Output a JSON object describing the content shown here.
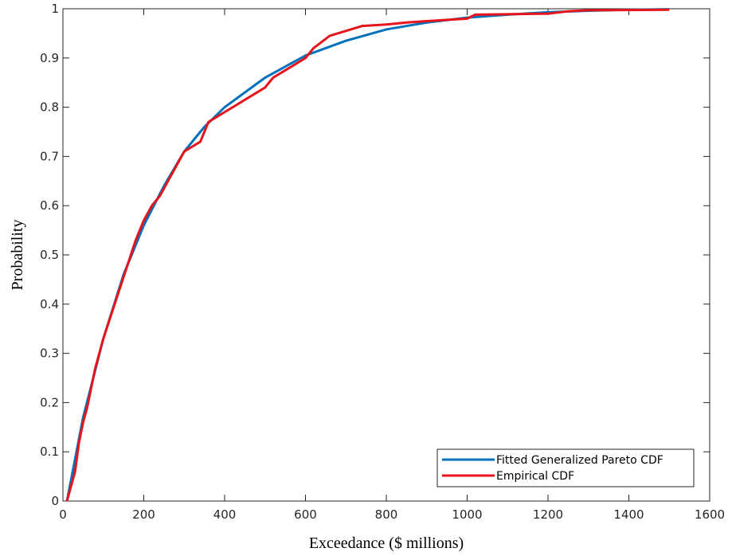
{
  "chart_data": {
    "type": "line",
    "xlabel": "Exceedance ($ millions)",
    "ylabel": "Probability",
    "xlim": [
      0,
      1600
    ],
    "xticks": [
      0,
      200,
      400,
      600,
      800,
      1000,
      1200,
      1400,
      1600
    ],
    "ylim": [
      0,
      1
    ],
    "yticks": [
      0,
      0.1,
      0.2,
      0.3,
      0.4,
      0.5,
      0.6,
      0.7,
      0.8,
      0.9,
      1
    ],
    "legend": "lower right",
    "series": [
      {
        "name": "Fitted Generalized Pareto CDF",
        "color": "#0072bd",
        "x": [
          10,
          50,
          100,
          150,
          200,
          250,
          300,
          350,
          400,
          500,
          600,
          700,
          800,
          900,
          1000,
          1100,
          1200,
          1300,
          1400,
          1500
        ],
        "values": [
          0,
          0.17,
          0.33,
          0.46,
          0.56,
          0.64,
          0.71,
          0.76,
          0.8,
          0.86,
          0.905,
          0.935,
          0.958,
          0.972,
          0.982,
          0.988,
          0.993,
          0.996,
          0.998,
          0.999
        ]
      },
      {
        "name": "Empirical CDF",
        "color": "#e8141c",
        "x": [
          10,
          20,
          30,
          40,
          50,
          60,
          70,
          80,
          90,
          100,
          120,
          140,
          160,
          180,
          200,
          220,
          240,
          260,
          280,
          300,
          340,
          360,
          400,
          420,
          440,
          480,
          500,
          520,
          560,
          600,
          620,
          660,
          700,
          740,
          800,
          850,
          900,
          1000,
          1020,
          1200,
          1250,
          1300,
          1500
        ],
        "values": [
          0,
          0.03,
          0.06,
          0.12,
          0.16,
          0.19,
          0.23,
          0.27,
          0.3,
          0.33,
          0.38,
          0.43,
          0.48,
          0.53,
          0.57,
          0.6,
          0.62,
          0.65,
          0.68,
          0.71,
          0.73,
          0.77,
          0.79,
          0.8,
          0.81,
          0.83,
          0.84,
          0.86,
          0.88,
          0.9,
          0.92,
          0.945,
          0.955,
          0.965,
          0.968,
          0.972,
          0.975,
          0.98,
          0.988,
          0.99,
          0.995,
          0.997,
          0.998
        ]
      }
    ]
  }
}
